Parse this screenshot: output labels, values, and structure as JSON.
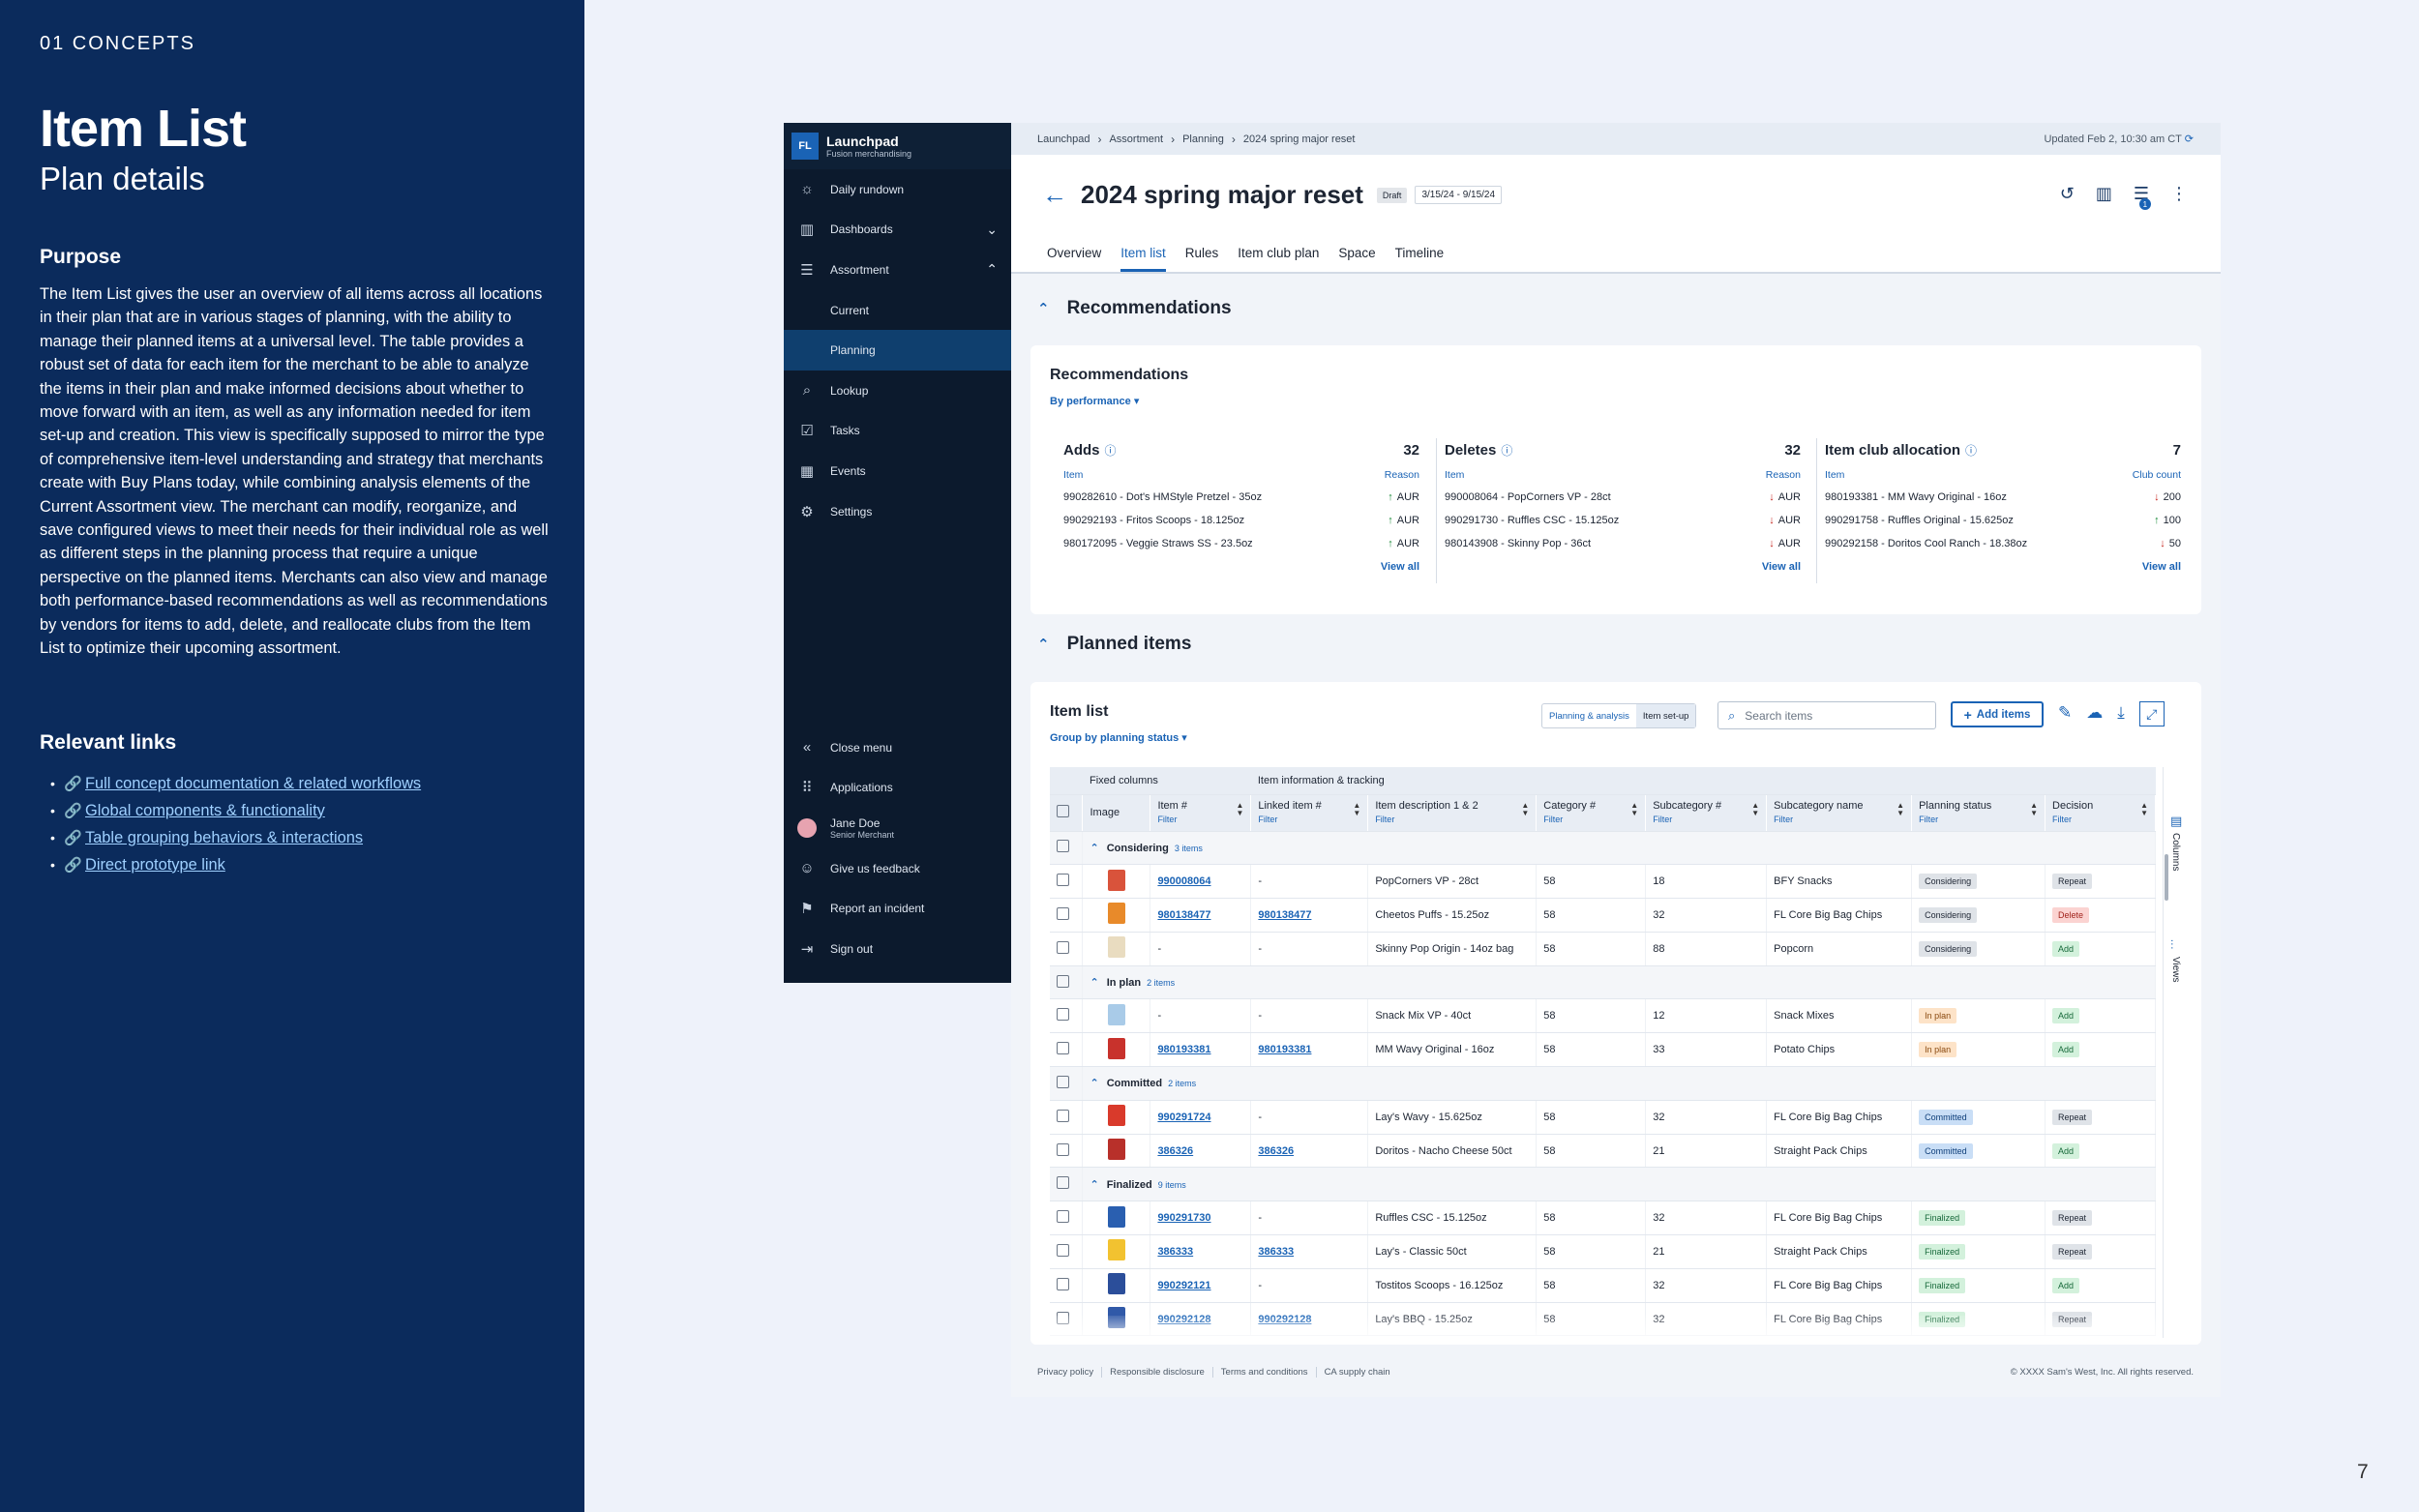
{
  "left": {
    "section": "01 CONCEPTS",
    "title": "Item List",
    "subtitle": "Plan details",
    "purpose_heading": "Purpose",
    "purpose_text": "The Item List gives the user an overview of all items across all locations in their plan that are in various stages of planning, with the ability to manage their planned items at a universal level. The table provides a robust set of data for each item for the merchant to be able to analyze the items in their plan and make informed  decisions about whether to move forward with an item, as well as any information needed for item set-up and creation. This view is specifically supposed to mirror the type of comprehensive item-level understanding and strategy that merchants create with Buy Plans today, while combining analysis elements of the Current Assortment view. The merchant can modify, reorganize, and save configured views to meet their needs for their individual role as well as different steps in the planning process that require a unique perspective on the planned items. Merchants can also view and manage both performance-based recommendations as well as recommendations by vendors for items to add, delete, and reallocate clubs from the Item List to optimize their upcoming assortment.",
    "links_heading": "Relevant links",
    "links": [
      "Full concept documentation & related workflows",
      "Global components & functionality",
      "Table grouping behaviors & interactions",
      "Direct prototype link"
    ]
  },
  "page_number": "7",
  "nav": {
    "logo": "FL",
    "app_name": "Launchpad",
    "app_sub": "Fusion merchandising",
    "items": [
      {
        "label": "Daily rundown",
        "icon": "sun-icon"
      },
      {
        "label": "Dashboards",
        "icon": "chart-icon"
      },
      {
        "label": "Assortment",
        "icon": "list-icon"
      },
      {
        "label": "Current"
      },
      {
        "label": "Planning"
      },
      {
        "label": "Lookup",
        "icon": "search-icon"
      },
      {
        "label": "Tasks",
        "icon": "checklist-icon"
      },
      {
        "label": "Events",
        "icon": "calendar-icon"
      },
      {
        "label": "Settings",
        "icon": "gear-icon"
      }
    ],
    "bottom": {
      "close_menu": "Close menu",
      "applications": "Applications",
      "user_name": "Jane Doe",
      "user_role": "Senior Merchant",
      "feedback": "Give us feedback",
      "incident": "Report an incident",
      "sign_out": "Sign out"
    }
  },
  "breadcrumb": [
    "Launchpad",
    "Assortment",
    "Planning",
    "2024 spring major reset"
  ],
  "updated": "Updated Feb 2, 10:30 am CT",
  "plan": {
    "title": "2024 spring major reset",
    "status": "Draft",
    "dates": "3/15/24 - 9/15/24",
    "notif_count": "1"
  },
  "tabs": [
    "Overview",
    "Item list",
    "Rules",
    "Item club plan",
    "Space",
    "Timeline"
  ],
  "recommendations": {
    "section_title": "Recommendations",
    "card_title": "Recommendations",
    "filter": "By performance",
    "adds": {
      "title": "Adds",
      "count": "32",
      "item_h": "Item",
      "reason_h": "Reason",
      "rows": [
        {
          "item": "990282610 - Dot's HMStyle Pretzel - 35oz",
          "reason": "AUR"
        },
        {
          "item": "990292193 - Fritos Scoops - 18.125oz",
          "reason": "AUR"
        },
        {
          "item": "980172095 - Veggie Straws SS - 23.5oz",
          "reason": "AUR"
        }
      ],
      "view_all": "View all"
    },
    "deletes": {
      "title": "Deletes",
      "count": "32",
      "item_h": "Item",
      "reason_h": "Reason",
      "rows": [
        {
          "item": "990008064 - PopCorners VP - 28ct",
          "reason": "AUR"
        },
        {
          "item": "990291730 - Ruffles CSC - 15.125oz",
          "reason": "AUR"
        },
        {
          "item": "980143908 - Skinny Pop - 36ct",
          "reason": "AUR"
        }
      ],
      "view_all": "View all"
    },
    "club": {
      "title": "Item club allocation",
      "count": "7",
      "item_h": "Item",
      "reason_h": "Club count",
      "rows": [
        {
          "item": "980193381 - MM Wavy Original - 16oz",
          "reason": "200",
          "dir": "down"
        },
        {
          "item": "990291758 - Ruffles Original - 15.625oz",
          "reason": "100",
          "dir": "up"
        },
        {
          "item": "990292158 - Doritos Cool Ranch - 18.38oz",
          "reason": "50",
          "dir": "down"
        }
      ],
      "view_all": "View all"
    }
  },
  "planned": {
    "section_title": "Planned items",
    "card_title": "Item list",
    "group_by": "Group by planning status",
    "seg": [
      "Planning & analysis",
      "Item set-up"
    ],
    "search_placeholder": "Search items",
    "add_items": "Add items",
    "col_groups": [
      "Fixed columns",
      "Item information & tracking"
    ],
    "columns": [
      "Image",
      "Item #",
      "Linked item #",
      "Item description 1 & 2",
      "Category #",
      "Subcategory #",
      "Subcategory name",
      "Planning status",
      "Decision"
    ],
    "filter_label": "Filter",
    "side": [
      "Columns",
      "Views"
    ],
    "groups": [
      {
        "name": "Considering",
        "count": "3 items",
        "rows": [
          {
            "item": "990008064",
            "linked": "-",
            "desc": "PopCorners VP - 28ct",
            "cat": "58",
            "subcat": "18",
            "subname": "BFY Snacks",
            "status": "Considering",
            "decision": "Repeat",
            "thumb": "#d9533b"
          },
          {
            "item": "980138477",
            "linked": "980138477",
            "desc": "Cheetos Puffs - 15.25oz",
            "cat": "58",
            "subcat": "32",
            "subname": "FL Core Big Bag Chips",
            "status": "Considering",
            "decision": "Delete",
            "thumb": "#e88a2a"
          },
          {
            "item": "-",
            "linked": "-",
            "desc": "Skinny Pop Origin - 14oz bag",
            "cat": "58",
            "subcat": "88",
            "subname": "Popcorn",
            "status": "Considering",
            "decision": "Add",
            "thumb": "#e9dcc0"
          }
        ]
      },
      {
        "name": "In plan",
        "count": "2 items",
        "rows": [
          {
            "item": "-",
            "linked": "-",
            "desc": "Snack Mix VP - 40ct",
            "cat": "58",
            "subcat": "12",
            "subname": "Snack Mixes",
            "status": "In plan",
            "decision": "Add",
            "thumb": "#a9cbe8"
          },
          {
            "item": "980193381",
            "linked": "980193381",
            "desc": "MM Wavy Original  - 16oz",
            "cat": "58",
            "subcat": "33",
            "subname": "Potato Chips",
            "status": "In plan",
            "decision": "Add",
            "thumb": "#c8322c"
          }
        ]
      },
      {
        "name": "Committed",
        "count": "2 items",
        "rows": [
          {
            "item": "990291724",
            "linked": "-",
            "desc": "Lay's Wavy - 15.625oz",
            "cat": "58",
            "subcat": "32",
            "subname": "FL Core Big Bag Chips",
            "status": "Committed",
            "decision": "Repeat",
            "thumb": "#d93a2b"
          },
          {
            "item": "386326",
            "linked": "386326",
            "desc": "Doritos - Nacho Cheese 50ct",
            "cat": "58",
            "subcat": "21",
            "subname": "Straight Pack Chips",
            "status": "Committed",
            "decision": "Add",
            "thumb": "#b8302a"
          }
        ]
      },
      {
        "name": "Finalized",
        "count": "9 items",
        "rows": [
          {
            "item": "990291730",
            "linked": "-",
            "desc": "Ruffles CSC - 15.125oz",
            "cat": "58",
            "subcat": "32",
            "subname": "FL Core Big Bag Chips",
            "status": "Finalized",
            "decision": "Repeat",
            "thumb": "#2a5fb0"
          },
          {
            "item": "386333",
            "linked": "386333",
            "desc": "Lay's - Classic 50ct",
            "cat": "58",
            "subcat": "21",
            "subname": "Straight Pack Chips",
            "status": "Finalized",
            "decision": "Repeat",
            "thumb": "#f2c230"
          },
          {
            "item": "990292121",
            "linked": "-",
            "desc": "Tostitos Scoops - 16.125oz",
            "cat": "58",
            "subcat": "32",
            "subname": "FL Core Big Bag Chips",
            "status": "Finalized",
            "decision": "Add",
            "thumb": "#2b4e9a"
          },
          {
            "item": "990292128",
            "linked": "990292128",
            "desc": "Lay's BBQ - 15.25oz",
            "cat": "58",
            "subcat": "32",
            "subname": "FL Core Big Bag Chips",
            "status": "Finalized",
            "decision": "Repeat",
            "thumb": "#3059a8"
          }
        ]
      }
    ]
  },
  "footer": {
    "links": [
      "Privacy policy",
      "Responsible disclosure",
      "Terms and conditions",
      "CA supply chain"
    ],
    "copyright": "© XXXX Sam's West, Inc. All rights reserved."
  }
}
